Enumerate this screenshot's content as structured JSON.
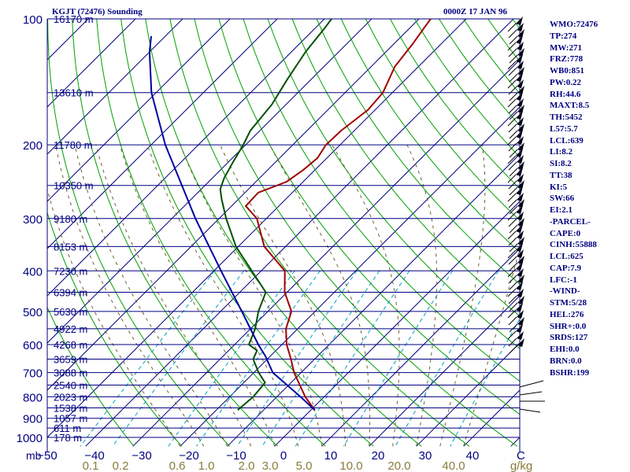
{
  "header": {
    "station": "KGJT (72476) Sounding",
    "time": "0000Z 17 JAN 96"
  },
  "colors": {
    "isobar": "#000080",
    "temperature": "#a00000",
    "dewpoint": "#005000",
    "parcel": "#0000a0",
    "dry_adiabat": "#00a000",
    "mixing_ratio": "#00a0c0",
    "moist_adiabat": "#706030",
    "isotherm": "#000080",
    "text": "#000080"
  },
  "indices": [
    "WMO:72476",
    "TP:274",
    "MW:271",
    "FRZ:778",
    "WB0:851",
    "PW:0.22",
    "RH:44.6",
    "MAXT:8.5",
    "TH:5452",
    "L57:5.7",
    "LCL:639",
    "LI:8.2",
    "SI:8.2",
    "TT:38",
    "KI:5",
    "SW:66",
    "EI:2.1",
    "-PARCEL-",
    "CAPE:0",
    "CINH:55888",
    "LCL:625",
    "CAP:7.9",
    "LFC:-1",
    "-WIND-",
    "STM:5/28",
    "HEL:276",
    "SHR+:0.0",
    "SRDS:127",
    "EHI:0.0",
    "BRN:0.0",
    "BSHR:199"
  ],
  "chart_data": {
    "type": "line",
    "xlabel": "C",
    "x_unit_label": "mb",
    "mixing_ratio_unit": "g/kg",
    "xlim": [
      -50,
      50
    ],
    "ylim": [
      1000,
      100
    ],
    "y_scale": "log",
    "pressure_ticks": [
      100,
      200,
      300,
      400,
      500,
      600,
      700,
      800,
      900,
      1000
    ],
    "temperature_ticks": [
      -50,
      -40,
      -30,
      -20,
      -10,
      0,
      10,
      20,
      30,
      40
    ],
    "mixing_ratio_labels": [
      "0.1",
      "0.2",
      "0.6",
      "1.0",
      "2.0",
      "3.0",
      "5.0",
      "10.0",
      "20.0",
      "40.0"
    ],
    "heights": [
      {
        "p": 100,
        "label": "16170 m"
      },
      {
        "p": 150,
        "label": "13610 m"
      },
      {
        "p": 200,
        "label": "11780 m"
      },
      {
        "p": 250,
        "label": "10350 m"
      },
      {
        "p": 300,
        "label": "9180 m"
      },
      {
        "p": 350,
        "label": "8153 m"
      },
      {
        "p": 400,
        "label": "7230 m"
      },
      {
        "p": 450,
        "label": "6394 m"
      },
      {
        "p": 500,
        "label": "5630 m"
      },
      {
        "p": 550,
        "label": "4922 m"
      },
      {
        "p": 600,
        "label": "4268 m"
      },
      {
        "p": 650,
        "label": "3659 m"
      },
      {
        "p": 700,
        "label": "3088 m"
      },
      {
        "p": 750,
        "label": "2540 m"
      },
      {
        "p": 800,
        "label": "2023 m"
      },
      {
        "p": 850,
        "label": "1538 m"
      },
      {
        "p": 900,
        "label": "1057 m"
      },
      {
        "p": 950,
        "label": "611 m"
      },
      {
        "p": 1000,
        "label": "178 m"
      }
    ],
    "series": [
      {
        "key": "temperature",
        "points": [
          [
            860,
            0.8
          ],
          [
            800,
            -4.0
          ],
          [
            700,
            -11.5
          ],
          [
            650,
            -15.0
          ],
          [
            600,
            -19.0
          ],
          [
            550,
            -22.5
          ],
          [
            500,
            -25.0
          ],
          [
            450,
            -30.5
          ],
          [
            400,
            -35.0
          ],
          [
            350,
            -44.5
          ],
          [
            300,
            -52.0
          ],
          [
            280,
            -57.0
          ],
          [
            260,
            -57.2
          ],
          [
            245,
            -53.5
          ],
          [
            230,
            -52.5
          ],
          [
            215,
            -52.0
          ],
          [
            200,
            -53.0
          ],
          [
            185,
            -52.8
          ],
          [
            165,
            -51.5
          ],
          [
            150,
            -52.0
          ],
          [
            130,
            -55.0
          ],
          [
            115,
            -56.0
          ],
          [
            105,
            -57.0
          ],
          [
            100,
            -57.5
          ]
        ]
      },
      {
        "key": "dewpoint",
        "points": [
          [
            860,
            -15.5
          ],
          [
            800,
            -15.0
          ],
          [
            740,
            -15.5
          ],
          [
            700,
            -19.0
          ],
          [
            650,
            -23.0
          ],
          [
            620,
            -24.0
          ],
          [
            600,
            -27.0
          ],
          [
            550,
            -29.0
          ],
          [
            500,
            -32.0
          ],
          [
            450,
            -34.5
          ],
          [
            400,
            -42.0
          ],
          [
            350,
            -50.5
          ],
          [
            300,
            -58.5
          ],
          [
            270,
            -63.5
          ],
          [
            255,
            -66.0
          ],
          [
            240,
            -67.5
          ],
          [
            220,
            -69.0
          ],
          [
            200,
            -70.5
          ],
          [
            185,
            -72.0
          ],
          [
            160,
            -73.0
          ],
          [
            140,
            -75.0
          ],
          [
            120,
            -77.0
          ],
          [
            105,
            -78.0
          ],
          [
            100,
            -78.5
          ]
        ]
      },
      {
        "key": "parcel",
        "points": [
          [
            860,
            0.8
          ],
          [
            800,
            -5.0
          ],
          [
            700,
            -16.0
          ],
          [
            640,
            -21.0
          ],
          [
            600,
            -25.0
          ],
          [
            500,
            -35.5
          ],
          [
            400,
            -48.5
          ],
          [
            300,
            -65.0
          ],
          [
            200,
            -87.0
          ],
          [
            150,
            -101.0
          ],
          [
            120,
            -110.0
          ],
          [
            110,
            -113.0
          ]
        ]
      }
    ]
  }
}
